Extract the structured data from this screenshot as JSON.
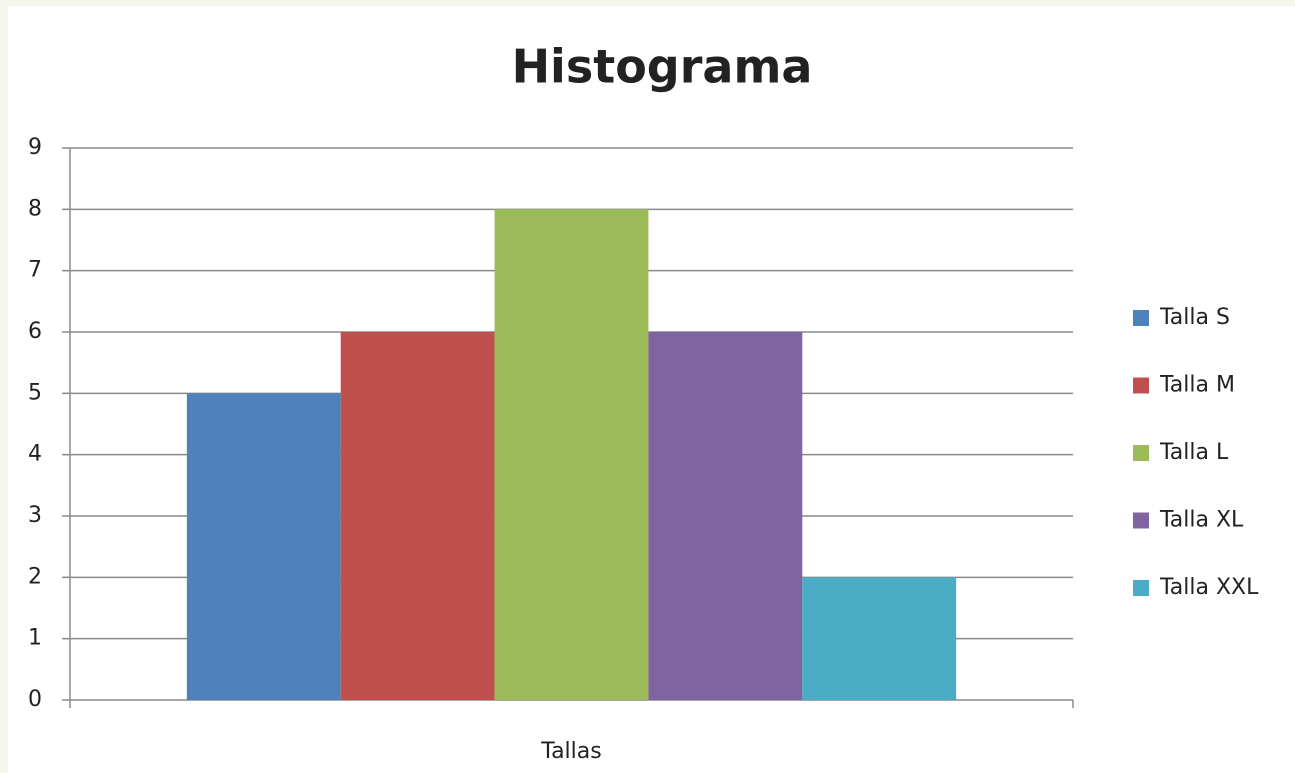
{
  "chart_data": {
    "type": "bar",
    "title": "Histograma",
    "categories": [
      "Tallas"
    ],
    "series": [
      {
        "name": "Talla S",
        "color": "#4f81bd",
        "values": [
          5
        ]
      },
      {
        "name": "Talla M",
        "color": "#c0504d",
        "values": [
          6
        ]
      },
      {
        "name": "Talla L",
        "color": "#9bbb59",
        "values": [
          8
        ]
      },
      {
        "name": "Talla XL",
        "color": "#8064a2",
        "values": [
          6
        ]
      },
      {
        "name": "Talla XXL",
        "color": "#4bacc6",
        "values": [
          2
        ]
      }
    ],
    "ylim": [
      0,
      9
    ],
    "yticks": [
      0,
      1,
      2,
      3,
      4,
      5,
      6,
      7,
      8,
      9
    ],
    "grid": true,
    "legend": "right"
  }
}
